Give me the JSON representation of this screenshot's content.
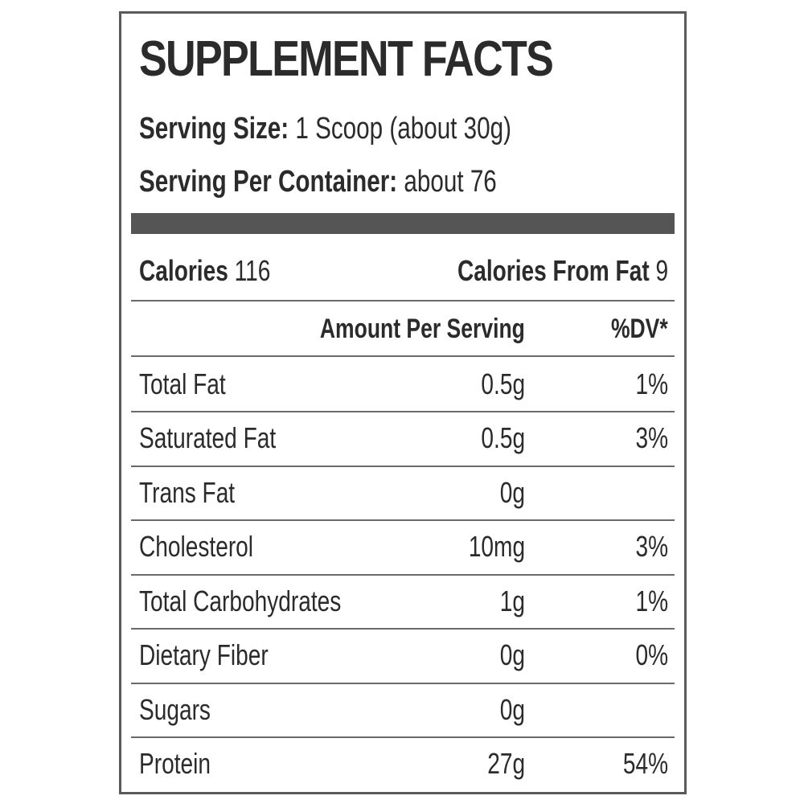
{
  "title": "SUPPLEMENT FACTS",
  "serving_size": {
    "label": "Serving Size:",
    "value": " 1 Scoop (about 30g)"
  },
  "servings_per_container": {
    "label": "Serving Per Container:",
    "value": " about 76"
  },
  "calories": {
    "label": "Calories",
    "value": " 116"
  },
  "calories_from_fat": {
    "label": "Calories From Fat",
    "value": " 9"
  },
  "headers": {
    "amount": "Amount Per Serving",
    "dv": "%DV*"
  },
  "nutrients": [
    {
      "name": "Total Fat",
      "amount": "0.5g",
      "dv": "1%"
    },
    {
      "name": "Saturated Fat",
      "amount": "0.5g",
      "dv": "3%"
    },
    {
      "name": "Trans Fat",
      "amount": "0g",
      "dv": ""
    },
    {
      "name": "Cholesterol",
      "amount": "10mg",
      "dv": "3%"
    },
    {
      "name": "Total Carbohydrates",
      "amount": "1g",
      "dv": "1%"
    },
    {
      "name": "Dietary Fiber",
      "amount": "0g",
      "dv": "0%"
    },
    {
      "name": "Sugars",
      "amount": "0g",
      "dv": ""
    },
    {
      "name": "Protein",
      "amount": "27g",
      "dv": "54%"
    }
  ],
  "colors": {
    "border": "#5a5a5a",
    "bar": "#555555",
    "text": "#2b2b2b"
  }
}
